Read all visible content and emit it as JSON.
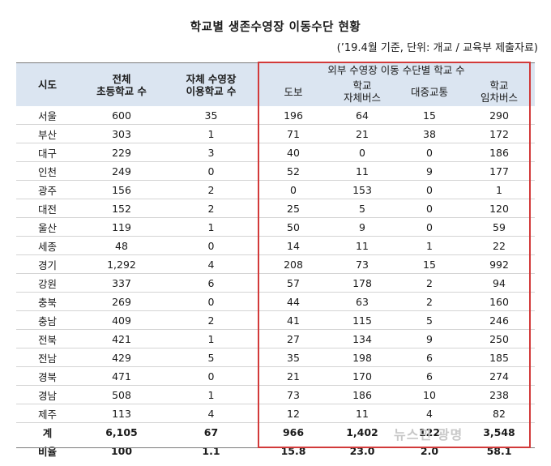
{
  "title": "학교별 생존수영장 이동수단 현황",
  "note": "(’19.4월 기준, 단위: 개교 / 교육부 제출자료)",
  "headers": {
    "region": "시도",
    "total_line1": "전체",
    "total_line2": "초등학교 수",
    "own_line1": "자체 수영장",
    "own_line2": "이용학교 수",
    "external": "외부 수영장 이동 수단별 학교 수",
    "walk": "도보",
    "school_bus_line1": "학교",
    "school_bus_line2": "자체버스",
    "public": "대중교통",
    "rent_bus_line1": "학교",
    "rent_bus_line2": "임차버스"
  },
  "rows": [
    [
      "서울",
      "600",
      "35",
      "196",
      "64",
      "15",
      "290"
    ],
    [
      "부산",
      "303",
      "1",
      "71",
      "21",
      "38",
      "172"
    ],
    [
      "대구",
      "229",
      "3",
      "40",
      "0",
      "0",
      "186"
    ],
    [
      "인천",
      "249",
      "0",
      "52",
      "11",
      "9",
      "177"
    ],
    [
      "광주",
      "156",
      "2",
      "0",
      "153",
      "0",
      "1"
    ],
    [
      "대전",
      "152",
      "2",
      "25",
      "5",
      "0",
      "120"
    ],
    [
      "울산",
      "119",
      "1",
      "50",
      "9",
      "0",
      "59"
    ],
    [
      "세종",
      "48",
      "0",
      "14",
      "11",
      "1",
      "22"
    ],
    [
      "경기",
      "1,292",
      "4",
      "208",
      "73",
      "15",
      "992"
    ],
    [
      "강원",
      "337",
      "6",
      "57",
      "178",
      "2",
      "94"
    ],
    [
      "충북",
      "269",
      "0",
      "44",
      "63",
      "2",
      "160"
    ],
    [
      "충남",
      "409",
      "2",
      "41",
      "115",
      "5",
      "246"
    ],
    [
      "전북",
      "421",
      "1",
      "27",
      "134",
      "9",
      "250"
    ],
    [
      "전남",
      "429",
      "5",
      "35",
      "198",
      "6",
      "185"
    ],
    [
      "경북",
      "471",
      "0",
      "21",
      "170",
      "6",
      "274"
    ],
    [
      "경남",
      "508",
      "1",
      "73",
      "186",
      "10",
      "238"
    ],
    [
      "제주",
      "113",
      "4",
      "12",
      "11",
      "4",
      "82"
    ]
  ],
  "total": [
    "계",
    "6,105",
    "67",
    "966",
    "1,402",
    "122",
    "3,548"
  ],
  "ratio": [
    "비율",
    "100",
    "1.1",
    "15.8",
    "23.0",
    "2.0",
    "58.1"
  ],
  "watermark": "뉴스인 광명",
  "colors": {
    "header_bg": "#dbe5f1",
    "highlight_border": "#d23a3a"
  }
}
